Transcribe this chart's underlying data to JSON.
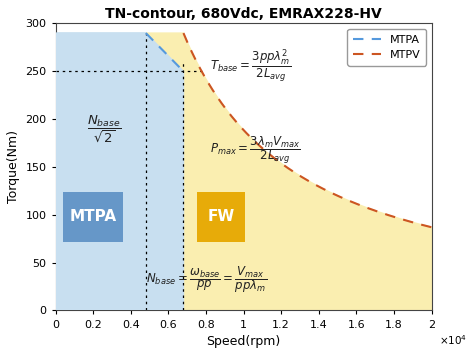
{
  "title": "TN-contour, 680Vdc, EMRAX228-HV",
  "xlabel": "Speed(rpm)",
  "ylabel": "Torque(Nm)",
  "xlim": [
    0,
    20000
  ],
  "ylim": [
    0,
    300
  ],
  "xticks": [
    0,
    2000,
    4000,
    6000,
    8000,
    10000,
    12000,
    14000,
    16000,
    18000,
    20000
  ],
  "yticks": [
    0,
    50,
    100,
    150,
    200,
    250,
    300
  ],
  "xtick_labels": [
    "0",
    "0.2",
    "0.4",
    "0.6",
    "0.8",
    "1",
    "1.2",
    "1.4",
    "1.6",
    "1.8",
    "2"
  ],
  "N_base": 6800,
  "N_base_over_sqrt2": 4800,
  "T_base": 250,
  "T_max_at_0": 290,
  "N_max": 20000,
  "T_at_Nmax": 87,
  "mtpa_color": "#5599dd",
  "mtpv_color": "#cc5522",
  "mtpa_region_color": "#c8dff0",
  "fw_region_color": "#faeeb0",
  "mtpa_label": "MTPA",
  "mtpv_label": "MTPV",
  "mtpa_box_color": "#5b8fc4",
  "fw_box_color": "#e6a800",
  "text_color": "#222222",
  "bg_color": "#ffffff"
}
